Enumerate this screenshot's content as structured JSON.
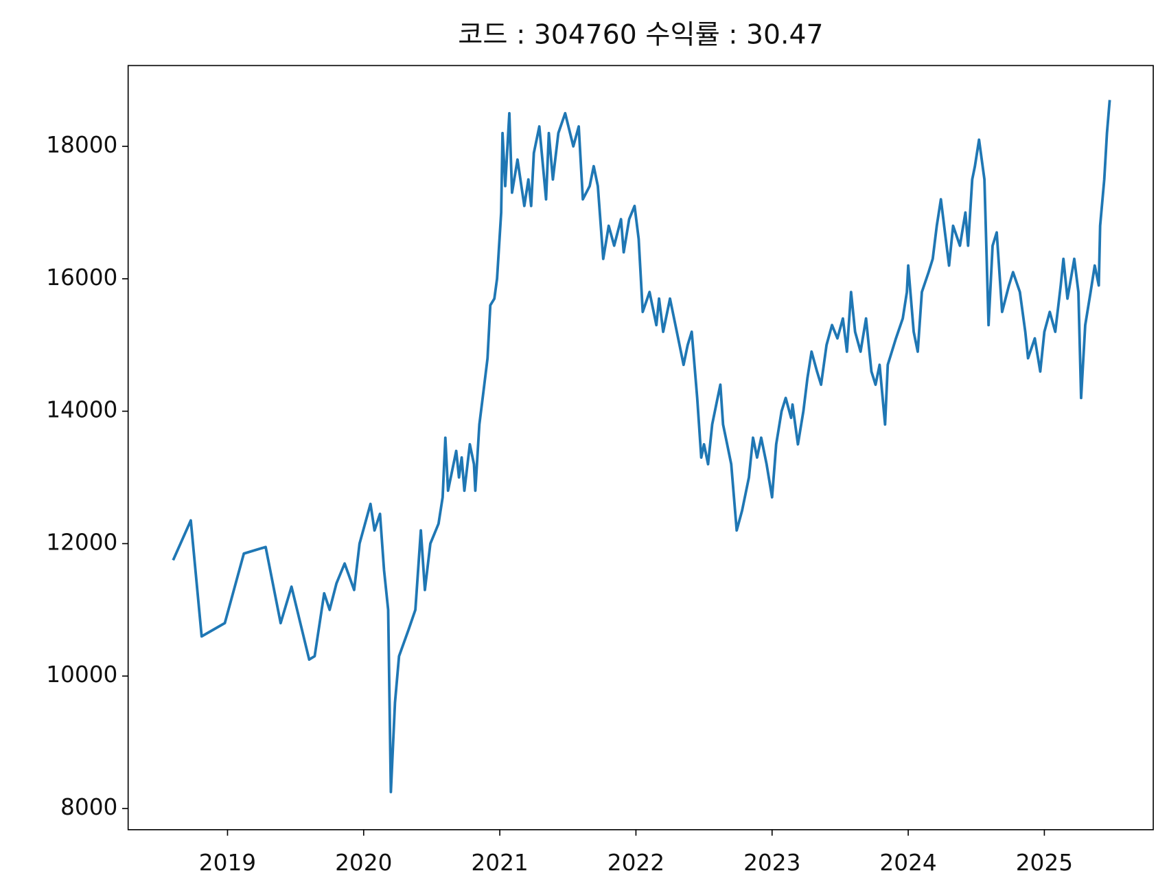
{
  "chart_data": {
    "type": "line",
    "title": "코드 : 304760 수익률 : 30.47",
    "color": "#1f77b4",
    "x": [
      2018.6,
      2018.73,
      2018.81,
      2018.98,
      2019.12,
      2019.28,
      2019.39,
      2019.47,
      2019.6,
      2019.64,
      2019.71,
      2019.75,
      2019.8,
      2019.86,
      2019.93,
      2019.97,
      2020.05,
      2020.08,
      2020.12,
      2020.15,
      2020.18,
      2020.2,
      2020.23,
      2020.26,
      2020.33,
      2020.38,
      2020.42,
      2020.45,
      2020.49,
      2020.55,
      2020.58,
      2020.6,
      2020.62,
      2020.68,
      2020.7,
      2020.72,
      2020.74,
      2020.78,
      2020.81,
      2020.82,
      2020.85,
      2020.88,
      2020.91,
      2020.93,
      2020.96,
      2020.98,
      2021.01,
      2021.02,
      2021.04,
      2021.07,
      2021.09,
      2021.13,
      2021.18,
      2021.21,
      2021.23,
      2021.25,
      2021.29,
      2021.34,
      2021.36,
      2021.39,
      2021.43,
      2021.48,
      2021.54,
      2021.58,
      2021.61,
      2021.66,
      2021.69,
      2021.72,
      2021.76,
      2021.8,
      2021.84,
      2021.89,
      2021.91,
      2021.95,
      2021.99,
      2022.02,
      2022.05,
      2022.1,
      2022.15,
      2022.17,
      2022.2,
      2022.25,
      2022.31,
      2022.35,
      2022.38,
      2022.41,
      2022.45,
      2022.48,
      2022.5,
      2022.53,
      2022.56,
      2022.6,
      2022.62,
      2022.64,
      2022.67,
      2022.7,
      2022.74,
      2022.78,
      2022.83,
      2022.86,
      2022.89,
      2022.92,
      2022.96,
      2023.0,
      2023.03,
      2023.07,
      2023.1,
      2023.14,
      2023.15,
      2023.19,
      2023.23,
      2023.26,
      2023.29,
      2023.33,
      2023.36,
      2023.4,
      2023.44,
      2023.48,
      2023.52,
      2023.55,
      2023.58,
      2023.61,
      2023.65,
      2023.69,
      2023.73,
      2023.76,
      2023.79,
      2023.83,
      2023.85,
      2023.91,
      2023.96,
      2023.99,
      2024.0,
      2024.04,
      2024.07,
      2024.1,
      2024.15,
      2024.18,
      2024.21,
      2024.24,
      2024.27,
      2024.3,
      2024.33,
      2024.38,
      2024.42,
      2024.44,
      2024.47,
      2024.49,
      2024.52,
      2024.56,
      2024.59,
      2024.62,
      2024.65,
      2024.69,
      2024.74,
      2024.77,
      2024.82,
      2024.86,
      2024.88,
      2024.93,
      2024.97,
      2025.0,
      2025.04,
      2025.08,
      2025.12,
      2025.14,
      2025.17,
      2025.22,
      2025.25,
      2025.27,
      2025.3,
      2025.34,
      2025.37,
      2025.4,
      2025.41,
      2025.44,
      2025.46,
      2025.48
    ],
    "values": [
      11750,
      12350,
      10600,
      10800,
      11850,
      11950,
      10800,
      11350,
      10250,
      10300,
      11250,
      11000,
      11400,
      11700,
      11300,
      12000,
      12600,
      12200,
      12450,
      11600,
      11000,
      8250,
      9600,
      10300,
      10700,
      11000,
      12200,
      11300,
      12000,
      12300,
      12700,
      13600,
      12800,
      13400,
      13000,
      13300,
      12800,
      13500,
      13200,
      12800,
      13800,
      14300,
      14800,
      15600,
      15700,
      16000,
      17000,
      18200,
      17400,
      18500,
      17300,
      17800,
      17100,
      17500,
      17100,
      17900,
      18300,
      17200,
      18200,
      17500,
      18200,
      18500,
      18000,
      18300,
      17200,
      17400,
      17700,
      17400,
      16300,
      16800,
      16500,
      16900,
      16400,
      16900,
      17100,
      16600,
      15500,
      15800,
      15300,
      15700,
      15200,
      15700,
      15100,
      14700,
      15000,
      15200,
      14200,
      13300,
      13500,
      13200,
      13800,
      14200,
      14400,
      13800,
      13500,
      13200,
      12200,
      12500,
      13000,
      13600,
      13300,
      13600,
      13200,
      12700,
      13500,
      14000,
      14200,
      13900,
      14100,
      13500,
      14000,
      14500,
      14900,
      14600,
      14400,
      15000,
      15300,
      15100,
      15400,
      14900,
      15800,
      15200,
      14900,
      15400,
      14600,
      14400,
      14700,
      13800,
      14700,
      15100,
      15400,
      15800,
      16200,
      15200,
      14900,
      15800,
      16100,
      16300,
      16800,
      17200,
      16700,
      16200,
      16800,
      16500,
      17000,
      16500,
      17500,
      17700,
      18100,
      17500,
      15300,
      16500,
      16700,
      15500,
      15900,
      16100,
      15800,
      15200,
      14800,
      15100,
      14600,
      15200,
      15500,
      15200,
      15900,
      16300,
      15700,
      16300,
      15800,
      14200,
      15300,
      15800,
      16200,
      15900,
      16800,
      17500,
      18200,
      18700
    ],
    "xlim": [
      2018.27,
      2025.8
    ],
    "xticks": [
      2019,
      2020,
      2021,
      2022,
      2023,
      2024,
      2025
    ],
    "ylim": [
      7680,
      19220
    ],
    "yticks": [
      8000,
      10000,
      12000,
      14000,
      16000,
      18000
    ]
  }
}
